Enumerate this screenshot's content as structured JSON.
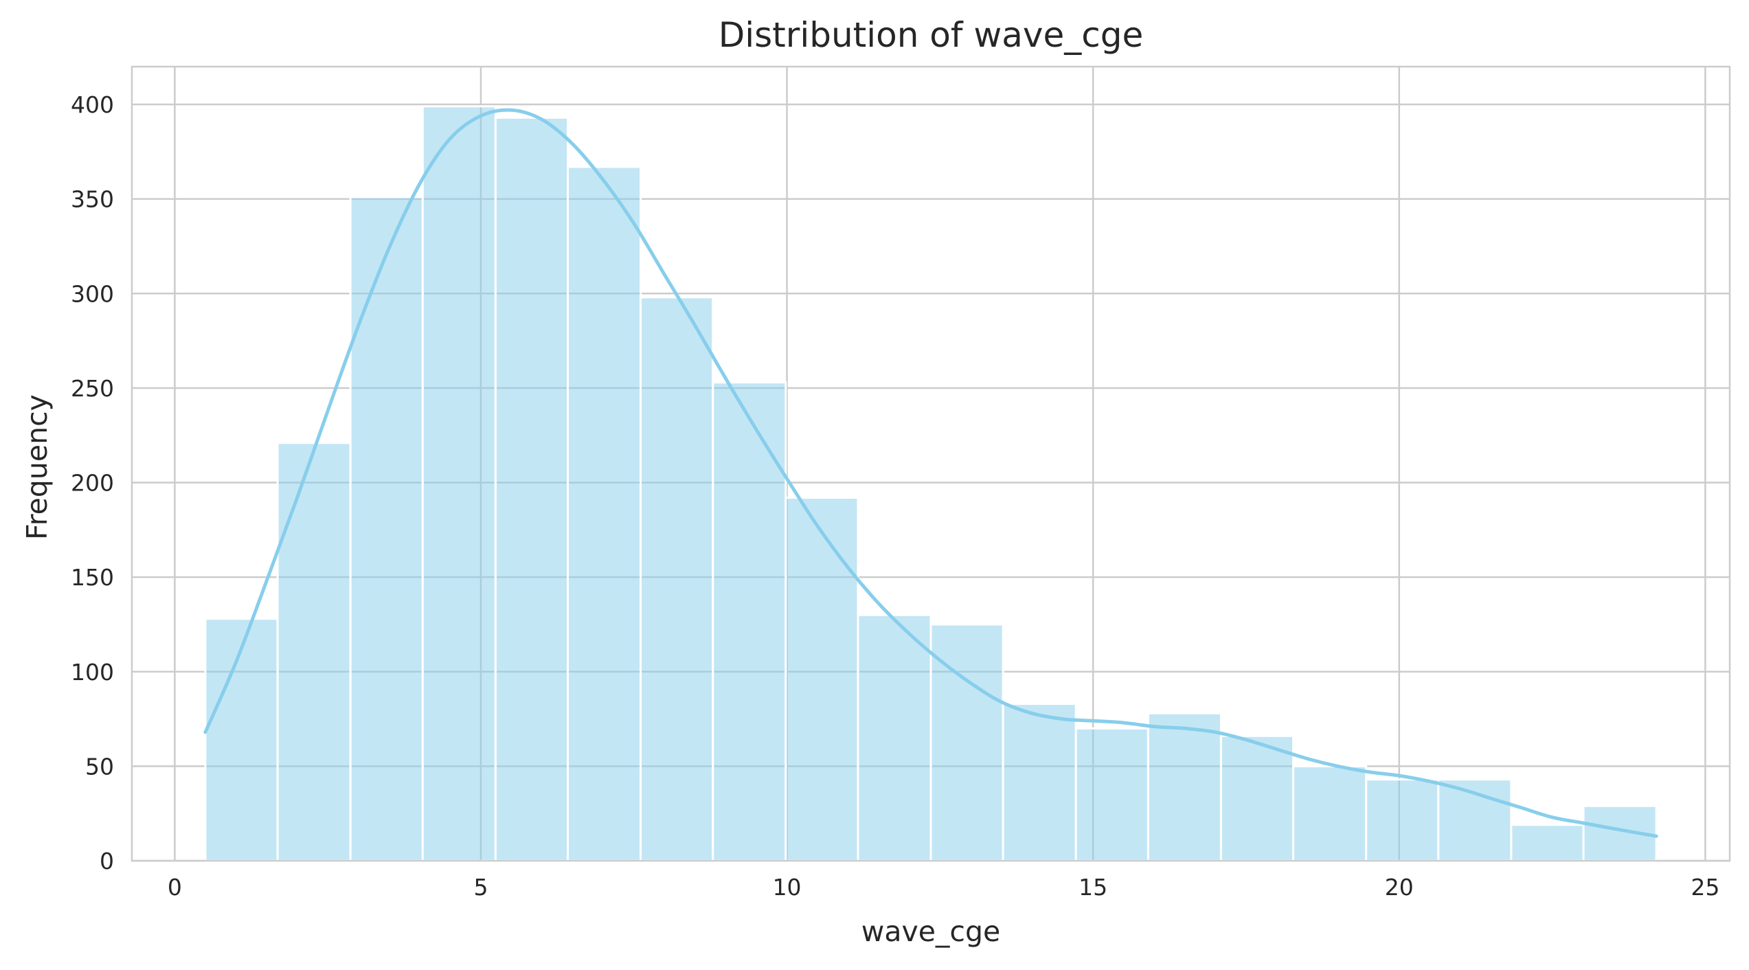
{
  "chart_data": {
    "type": "histogram",
    "title": "Distribution of wave_cge",
    "xlabel": "wave_cge",
    "ylabel": "Frequency",
    "xlim": [
      -0.7,
      25.4
    ],
    "ylim": [
      0,
      420
    ],
    "xticks": [
      0,
      5,
      10,
      15,
      20,
      25
    ],
    "yticks": [
      0,
      50,
      100,
      150,
      200,
      250,
      300,
      350,
      400
    ],
    "grid": true,
    "legend": false,
    "colors": {
      "bar": "#87ceeb",
      "bar_opacity": 0.5,
      "kde": "#87ceeb"
    },
    "bins": [
      {
        "x0": 0.5,
        "x1": 1.68,
        "count": 128
      },
      {
        "x0": 1.68,
        "x1": 2.87,
        "count": 221
      },
      {
        "x0": 2.87,
        "x1": 4.05,
        "count": 351
      },
      {
        "x0": 4.05,
        "x1": 5.24,
        "count": 399
      },
      {
        "x0": 5.24,
        "x1": 6.42,
        "count": 393
      },
      {
        "x0": 6.42,
        "x1": 7.61,
        "count": 367
      },
      {
        "x0": 7.61,
        "x1": 8.79,
        "count": 298
      },
      {
        "x0": 8.79,
        "x1": 9.98,
        "count": 253
      },
      {
        "x0": 9.98,
        "x1": 11.16,
        "count": 192
      },
      {
        "x0": 11.16,
        "x1": 12.35,
        "count": 130
      },
      {
        "x0": 12.35,
        "x1": 13.53,
        "count": 125
      },
      {
        "x0": 13.53,
        "x1": 14.72,
        "count": 83
      },
      {
        "x0": 14.72,
        "x1": 15.9,
        "count": 70
      },
      {
        "x0": 15.9,
        "x1": 17.09,
        "count": 78
      },
      {
        "x0": 17.09,
        "x1": 18.27,
        "count": 66
      },
      {
        "x0": 18.27,
        "x1": 19.46,
        "count": 50
      },
      {
        "x0": 19.46,
        "x1": 20.64,
        "count": 43
      },
      {
        "x0": 20.64,
        "x1": 21.83,
        "count": 43
      },
      {
        "x0": 21.83,
        "x1": 23.01,
        "count": 19
      },
      {
        "x0": 23.01,
        "x1": 24.2,
        "count": 29
      }
    ],
    "kde": {
      "x": [
        0.5,
        1.0,
        1.5,
        2.0,
        2.5,
        3.0,
        3.5,
        4.0,
        4.5,
        5.0,
        5.5,
        6.0,
        6.5,
        7.0,
        7.5,
        8.0,
        8.5,
        9.0,
        9.5,
        10.0,
        10.5,
        11.0,
        11.5,
        12.0,
        12.5,
        13.0,
        13.5,
        14.0,
        14.5,
        15.0,
        15.5,
        16.0,
        16.5,
        17.0,
        17.5,
        18.0,
        18.5,
        19.0,
        19.5,
        20.0,
        20.5,
        21.0,
        21.5,
        22.0,
        22.5,
        23.0,
        23.5,
        24.2
      ],
      "y": [
        68,
        105,
        148,
        192,
        238,
        283,
        324,
        358,
        382,
        394,
        397,
        392,
        379,
        360,
        337,
        310,
        283,
        255,
        228,
        202,
        177,
        155,
        136,
        120,
        106,
        94,
        84,
        78,
        75,
        74,
        73,
        71,
        70,
        68,
        64,
        59,
        54,
        50,
        47,
        45,
        42,
        38,
        33,
        28,
        23,
        20,
        17,
        13
      ]
    }
  }
}
